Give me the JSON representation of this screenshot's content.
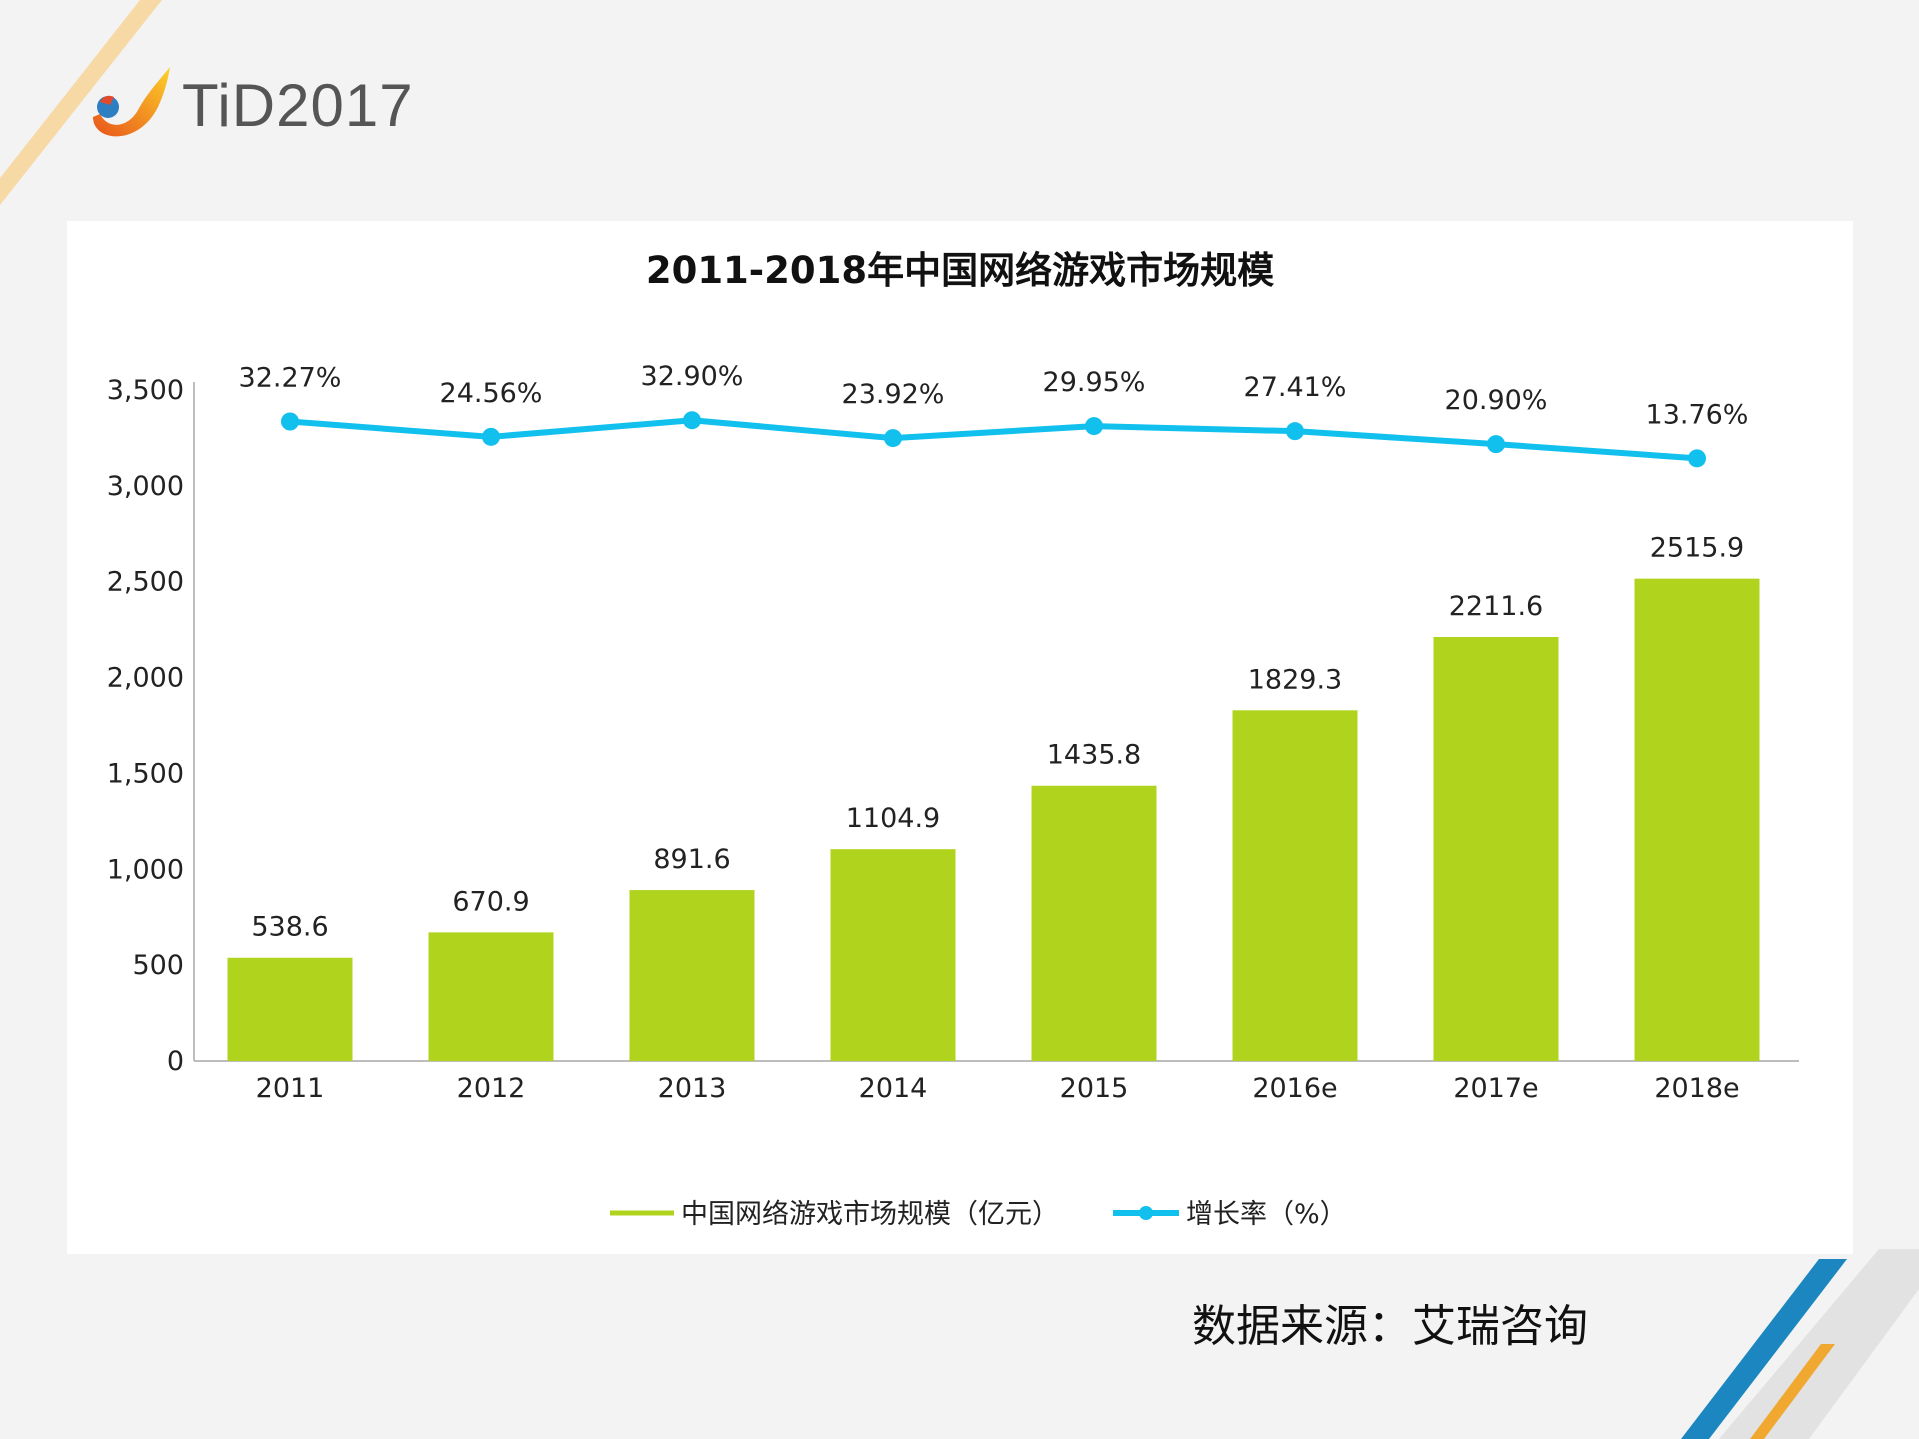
{
  "logo": {
    "text": "TiD2017"
  },
  "source_note": "数据来源：艾瑞咨询",
  "colors": {
    "bar": "#b0d31e",
    "line": "#12c0ee",
    "background": "#f3f3f3"
  },
  "chart_data": {
    "type": "bar+line",
    "title": "2011-2018年中国网络游戏市场规模",
    "categories": [
      "2011",
      "2012",
      "2013",
      "2014",
      "2015",
      "2016e",
      "2017e",
      "2018e"
    ],
    "ylim": [
      0,
      3500
    ],
    "yticks": [
      "0",
      "500",
      "1,000",
      "1,500",
      "2,000",
      "2,500",
      "3,000",
      "3,500"
    ],
    "grid": false,
    "legend_position": "bottom",
    "series": [
      {
        "name": "中国网络游戏市场规模（亿元）",
        "type": "bar",
        "values": [
          538.6,
          670.9,
          891.6,
          1104.9,
          1435.8,
          1829.3,
          2211.6,
          2515.9
        ],
        "labels": [
          "538.6",
          "670.9",
          "891.6",
          "1104.9",
          "1435.8",
          "1829.3",
          "2211.6",
          "2515.9"
        ]
      },
      {
        "name": "增长率（%）",
        "type": "line",
        "axis": "secondary (hidden)",
        "values": [
          32.27,
          24.56,
          32.9,
          23.92,
          29.95,
          27.41,
          20.9,
          13.76
        ],
        "labels": [
          "32.27%",
          "24.56%",
          "32.90%",
          "23.92%",
          "29.95%",
          "27.41%",
          "20.90%",
          "13.76%"
        ]
      }
    ]
  }
}
